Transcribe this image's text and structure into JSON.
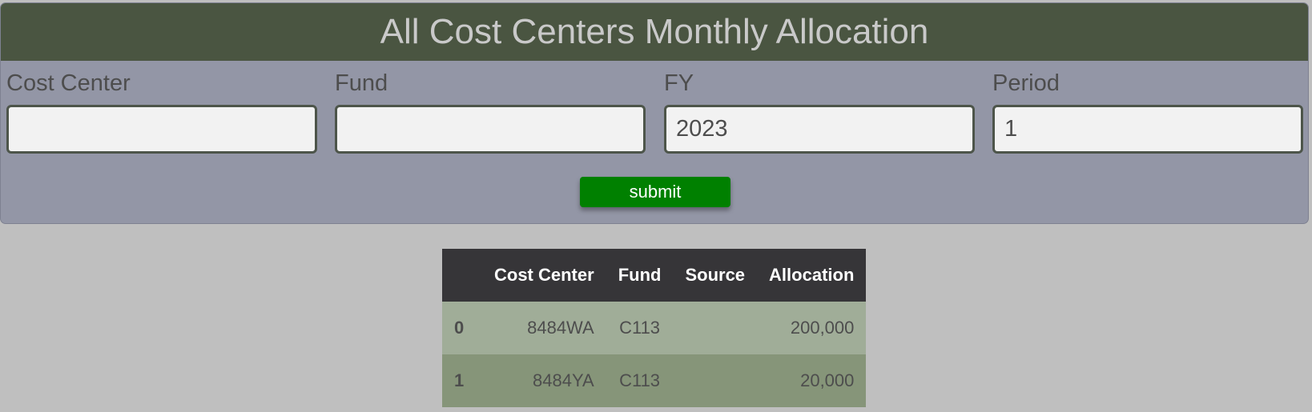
{
  "header": {
    "title": "All Cost Centers Monthly Allocation"
  },
  "form": {
    "cost_center": {
      "label": "Cost Center",
      "value": ""
    },
    "fund": {
      "label": "Fund",
      "value": ""
    },
    "fy": {
      "label": "FY",
      "value": "2023"
    },
    "period": {
      "label": "Period",
      "value": "1"
    },
    "submit_label": "submit"
  },
  "table": {
    "columns": [
      "",
      "Cost Center",
      "Fund",
      "Source",
      "Allocation"
    ],
    "rows": [
      {
        "index": "0",
        "cost_center": "8484WA",
        "fund": "C113",
        "source": "",
        "allocation": "200,000"
      },
      {
        "index": "1",
        "cost_center": "8484YA",
        "fund": "C113",
        "source": "",
        "allocation": "20,000"
      }
    ]
  },
  "colors": {
    "header_bg": "#4a5541",
    "panel_bg": "#9396a6",
    "submit_bg": "#008000",
    "table_header_bg": "#363538",
    "row_even_bg": "#a0ad98",
    "row_odd_bg": "#869579"
  }
}
